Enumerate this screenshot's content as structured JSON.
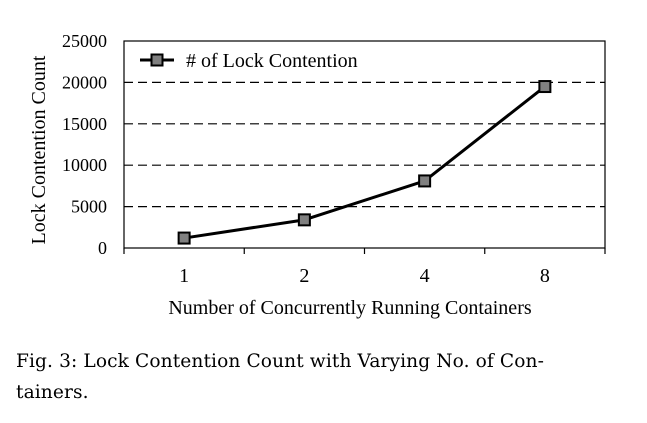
{
  "chart_data": {
    "type": "line",
    "title": "",
    "xlabel": "Number of Concurrently Running Containers",
    "ylabel": "Lock Contention Count",
    "categories": [
      "1",
      "2",
      "4",
      "8"
    ],
    "series": [
      {
        "name": "# of Lock Contention",
        "values": [
          1200,
          3400,
          8100,
          19500
        ],
        "color": "#000000",
        "marker": "square",
        "marker_fill": "#808080"
      }
    ],
    "yticks": [
      "0",
      "5000",
      "10000",
      "15000",
      "20000",
      "25000"
    ],
    "ylim": [
      0,
      25000
    ],
    "grid": "horizontal-dashed",
    "legend_position": "top-left"
  },
  "caption": {
    "line1": "Fig. 3: Lock Contention Count with Varying No. of Con-",
    "line2": "tainers."
  }
}
